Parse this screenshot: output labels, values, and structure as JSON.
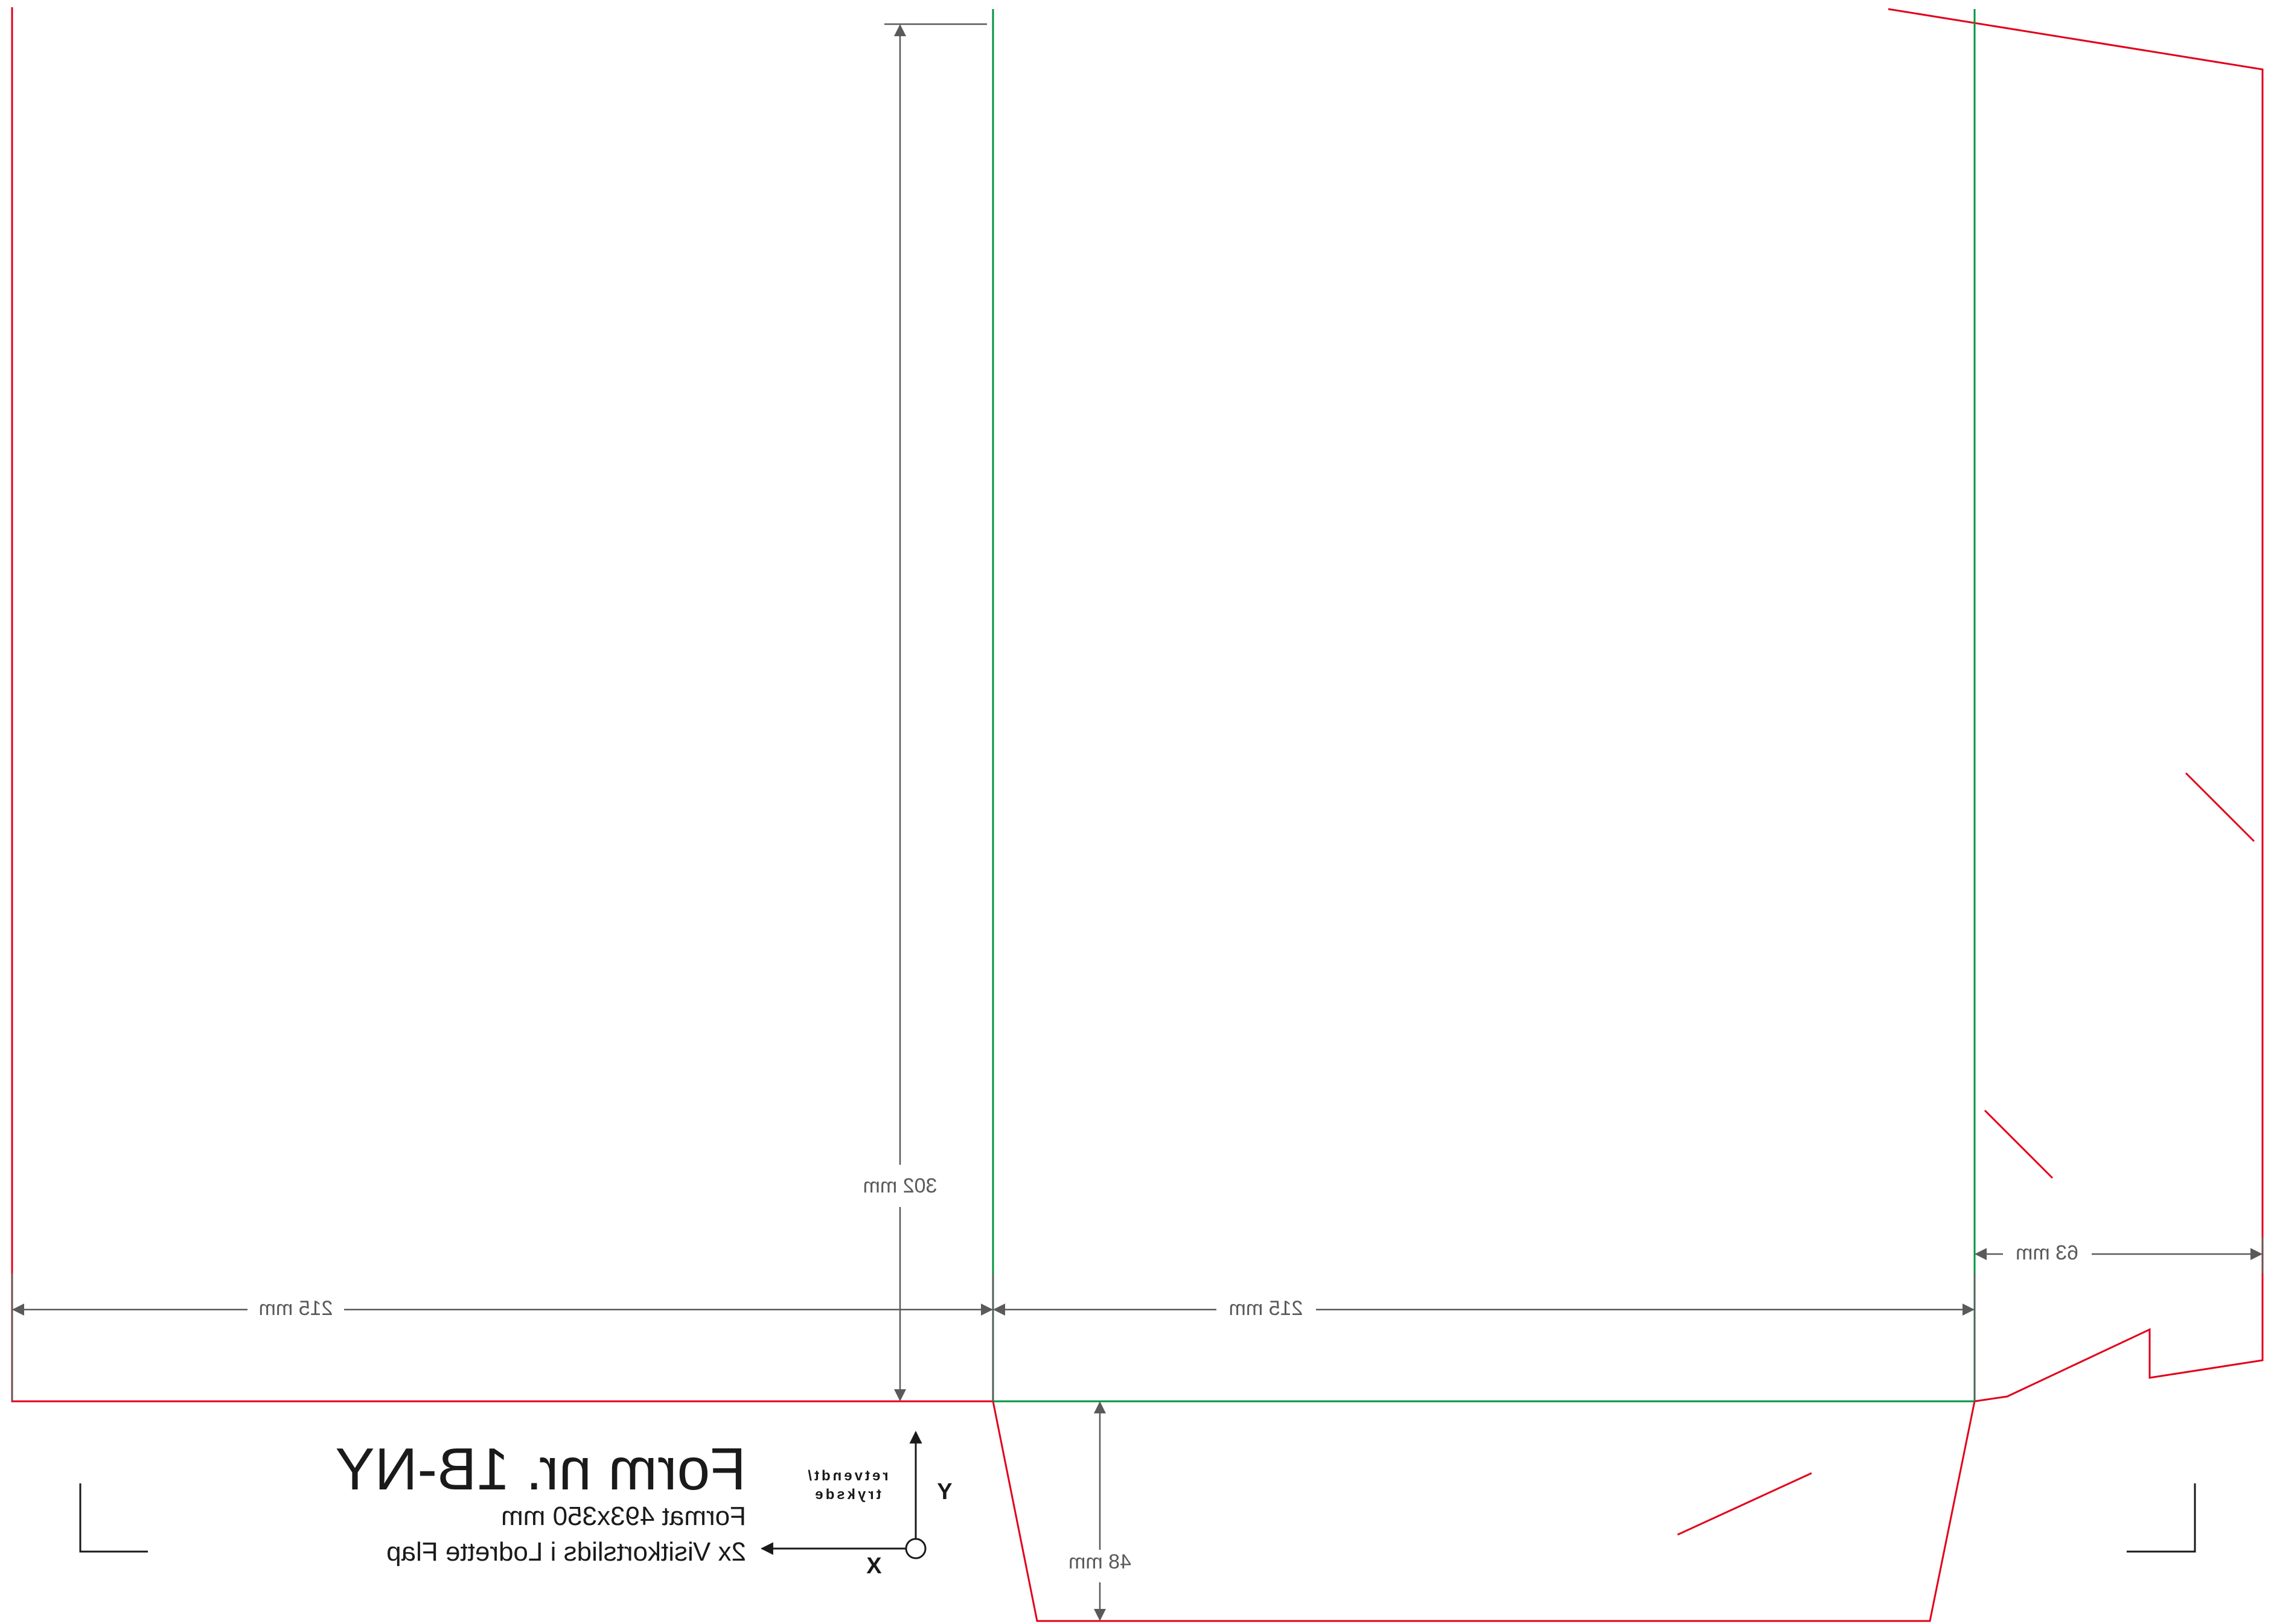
{
  "colors": {
    "cut_line": "#e2001a",
    "fold_line": "#00963f",
    "dimension": "#5a5a5a",
    "text": "#1a1a1a",
    "crop_marks": "#1a1a1a"
  },
  "title_block": {
    "title": "Form nr. 1B-NY",
    "format_line": "Format 493x350 mm",
    "description_line": "2x Visitkortslids i Lodrette Flap"
  },
  "orientation_indicator": {
    "y_label": "Y",
    "x_label": "X",
    "side_label_line1": "retvendt/",
    "side_label_line2": "tryksde"
  },
  "dimensions": {
    "height_label": "302 mm",
    "left_panel_width_label": "215 mm",
    "right_panel_width_label": "215 mm",
    "side_flap_width_label": "63 mm",
    "bottom_flap_height_label": "48 mm"
  }
}
